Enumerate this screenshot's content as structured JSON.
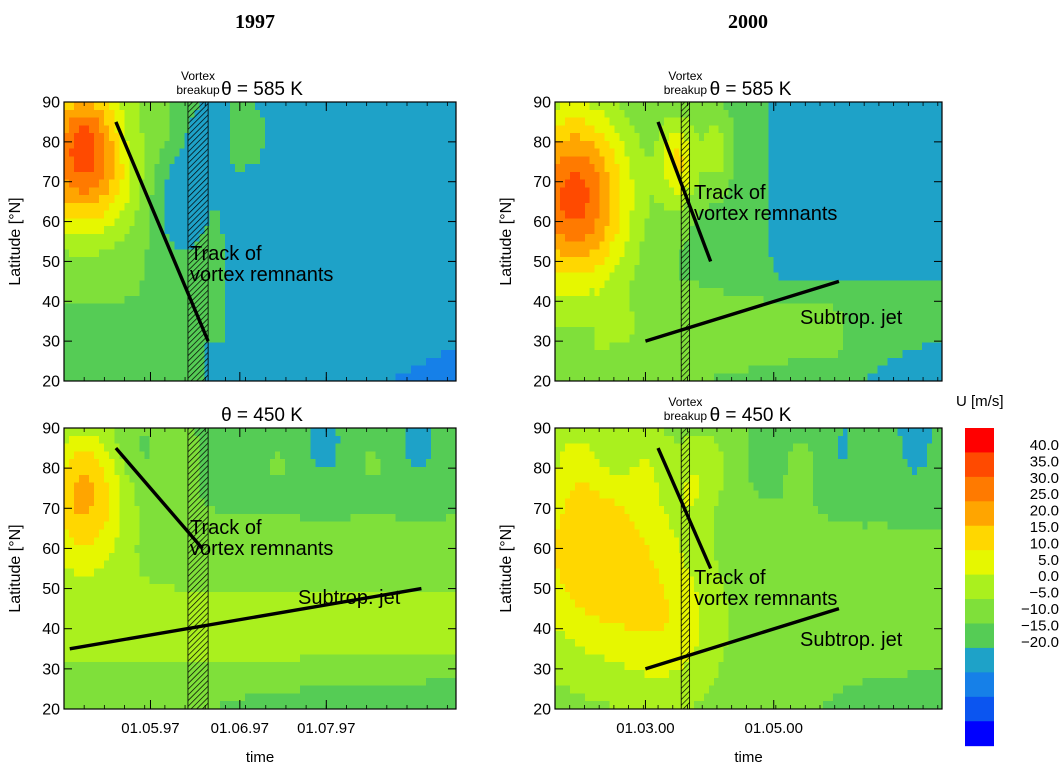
{
  "figure": {
    "col_titles": [
      "1997",
      "2000"
    ],
    "xlabel": "time",
    "colorbar_title": "U [m/s]",
    "colorbar_ticks": [
      "40.0",
      "35.0",
      "30.0",
      "25.0",
      "20.0",
      "15.0",
      "10.0",
      "5.0",
      "0.0",
      "−5.0",
      "−10.0",
      "−15.0",
      "−20.0"
    ],
    "colors": {
      "levels": [
        "#0000ff",
        "#0b55f0",
        "#1680e8",
        "#1ea2c8",
        "#55cc55",
        "#7fe03a",
        "#aaf01e",
        "#e6f700",
        "#ffd700",
        "#ffa500",
        "#ff7a00",
        "#ff4a00",
        "#ff0000"
      ],
      "line": "#000000"
    }
  },
  "chart_data": [
    {
      "type": "heatmap",
      "year_title": "1997",
      "title": "θ = 585 K",
      "ylabel": "Latitude [°N]",
      "ylim": [
        20,
        90
      ],
      "yticks": [
        "20",
        "30",
        "40",
        "50",
        "60",
        "70",
        "80",
        "90"
      ],
      "xticks": [],
      "breakup_label": [
        "Vortex",
        "breakup"
      ],
      "annotations": [
        {
          "text": [
            "Track of",
            "vortex remnants"
          ],
          "line": [
            [
              "1997-04-19",
              85
            ],
            [
              "1997-05-21",
              30
            ]
          ]
        }
      ]
    },
    {
      "type": "heatmap",
      "year_title": "2000",
      "title": "θ = 585 K",
      "ylabel": "Latitude [°N]",
      "ylim": [
        20,
        90
      ],
      "yticks": [
        "20",
        "30",
        "40",
        "50",
        "60",
        "70",
        "80",
        "90"
      ],
      "xticks": [],
      "breakup_label": [
        "Vortex",
        "breakup"
      ],
      "annotations": [
        {
          "text": [
            "Track of",
            "vortex remnants"
          ],
          "line": [
            [
              "2000-03-07",
              85
            ],
            [
              "2000-04-01",
              50
            ]
          ]
        },
        {
          "text": [
            "Subtrop. jet"
          ],
          "line": [
            [
              "2000-03-01",
              30
            ],
            [
              "2000-06-01",
              45
            ]
          ]
        }
      ]
    },
    {
      "type": "heatmap",
      "title": "θ = 450 K",
      "ylabel": "Latitude [°N]",
      "ylim": [
        20,
        90
      ],
      "yticks": [
        "20",
        "30",
        "40",
        "50",
        "60",
        "70",
        "80",
        "90"
      ],
      "xticks": [
        "01.05.97",
        "01.06.97",
        "01.07.97"
      ],
      "xlabel": "time",
      "annotations": [
        {
          "text": [
            "Track of",
            "vortex remnants"
          ],
          "line": [
            [
              "1997-04-19",
              85
            ],
            [
              "1997-05-19",
              60
            ]
          ]
        },
        {
          "text": [
            "Subtrop. jet"
          ],
          "line": [
            [
              "1997-04-03",
              35
            ],
            [
              "1997-08-03",
              50
            ]
          ]
        }
      ]
    },
    {
      "type": "heatmap",
      "title": "θ = 450 K",
      "ylabel": "Latitude [°N]",
      "ylim": [
        20,
        90
      ],
      "yticks": [
        "20",
        "30",
        "40",
        "50",
        "60",
        "70",
        "80",
        "90"
      ],
      "xticks": [
        "01.03.00",
        "01.05.00"
      ],
      "xlabel": "time",
      "breakup_label": [
        "Vortex",
        "breakup"
      ],
      "annotations": [
        {
          "text": [
            "Track of",
            "vortex remnants"
          ],
          "line": [
            [
              "2000-03-07",
              85
            ],
            [
              "2000-04-01",
              55
            ]
          ]
        },
        {
          "text": [
            "Subtrop. jet"
          ],
          "line": [
            [
              "2000-03-01",
              30
            ],
            [
              "2000-06-01",
              45
            ]
          ]
        }
      ]
    }
  ]
}
